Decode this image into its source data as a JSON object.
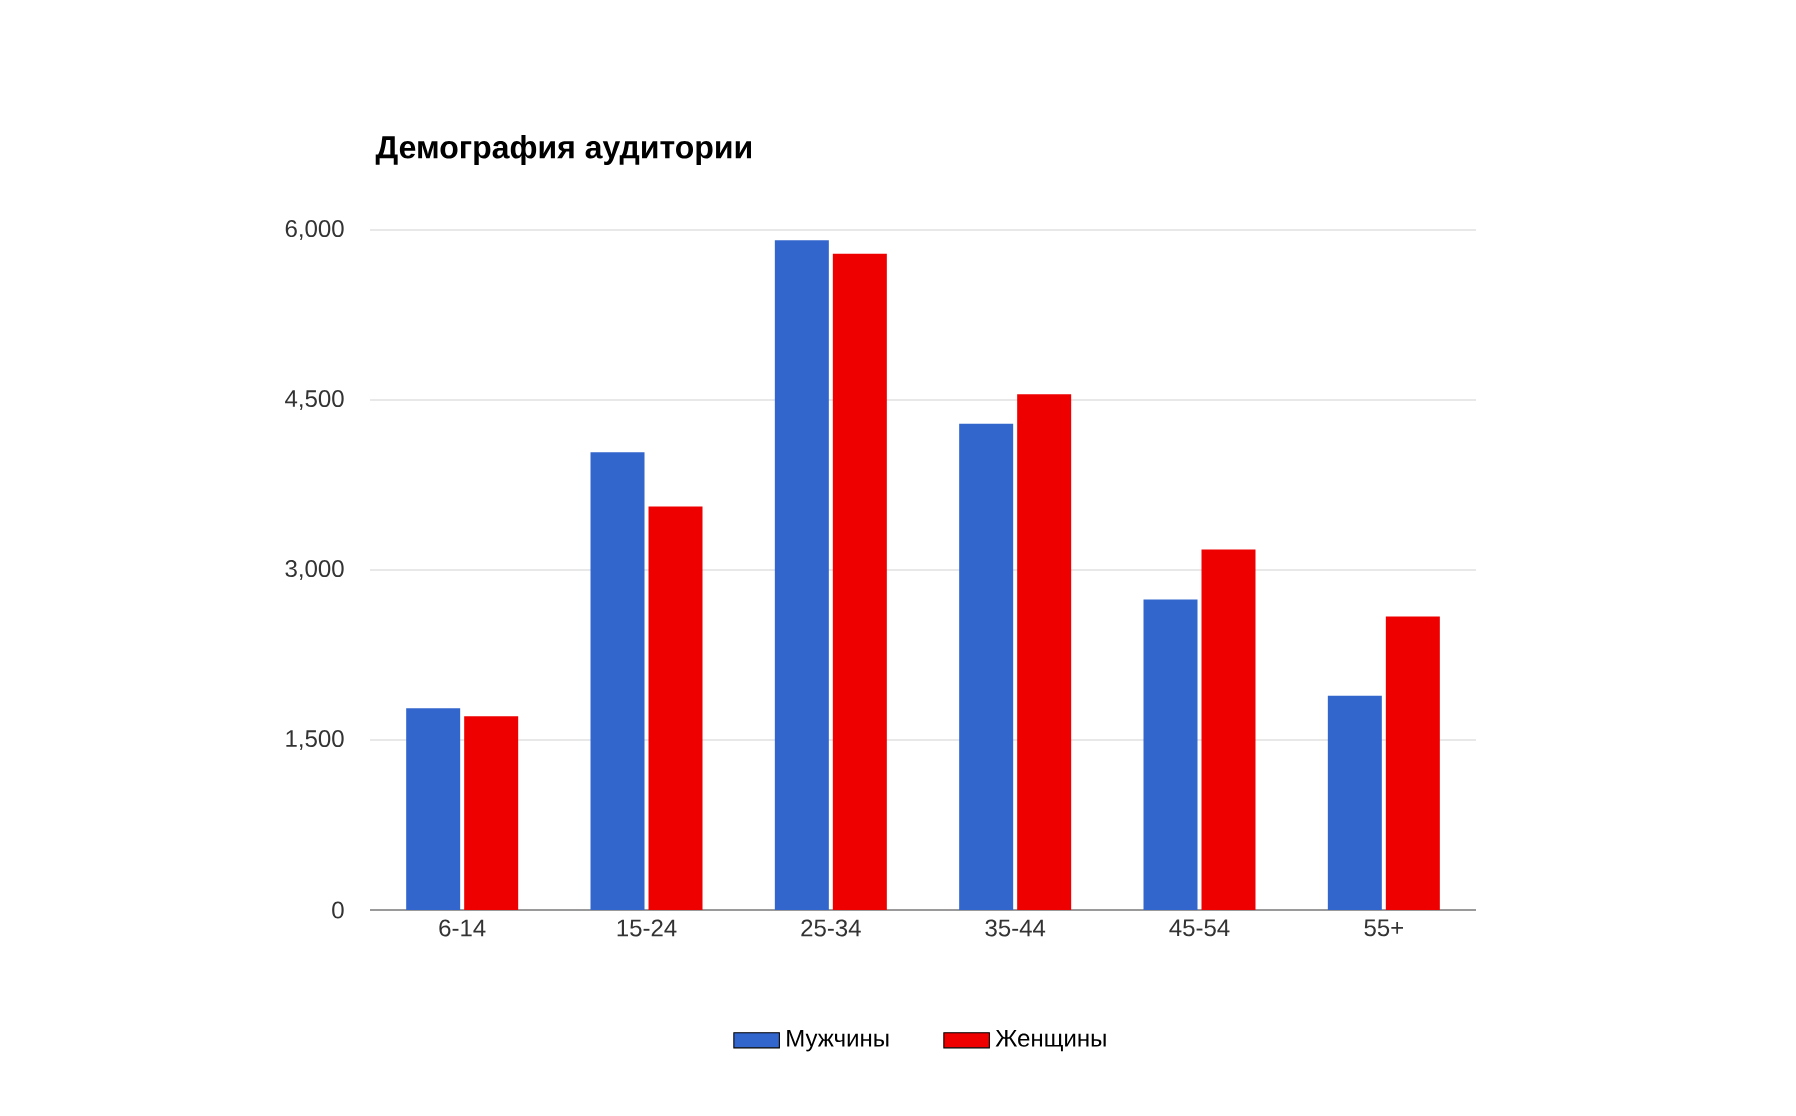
{
  "chart_data": {
    "type": "bar",
    "title": "Демография аудитории",
    "categories": [
      "6-14",
      "15-24",
      "25-34",
      "35-44",
      "45-54",
      "55+"
    ],
    "series": [
      {
        "name": "Мужчины",
        "color": "#3366cc",
        "values": [
          1780,
          4040,
          5910,
          4290,
          2740,
          1890
        ]
      },
      {
        "name": "Женщины",
        "color": "#ee0000",
        "values": [
          1710,
          3560,
          5790,
          4550,
          3180,
          2590
        ]
      }
    ],
    "ylim": [
      0,
      6000
    ],
    "yticks": [
      {
        "value": 0,
        "label": "0"
      },
      {
        "value": 1500,
        "label": "1,500"
      },
      {
        "value": 3000,
        "label": "3,000"
      },
      {
        "value": 4500,
        "label": "4,500"
      },
      {
        "value": 6000,
        "label": "6,000"
      }
    ],
    "grid": "y",
    "legend": "bottom"
  }
}
